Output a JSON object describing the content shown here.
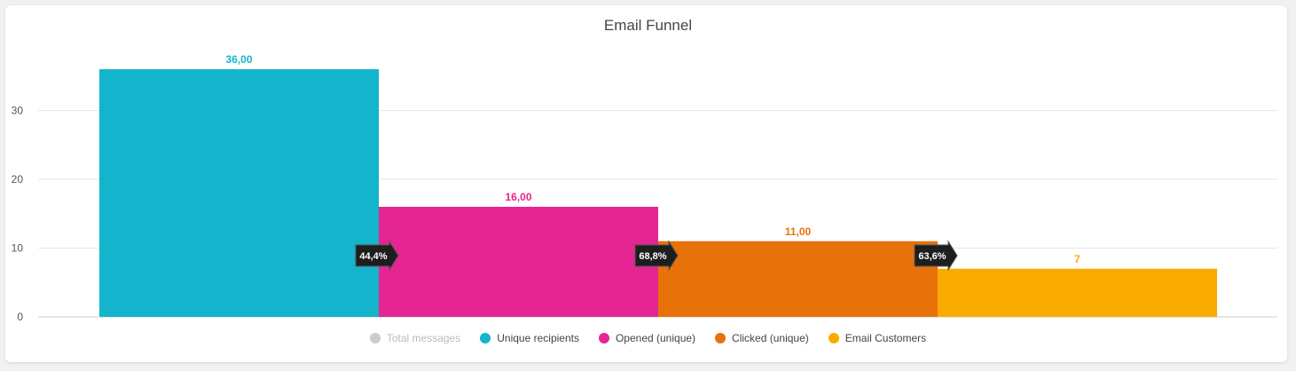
{
  "chart_data": {
    "type": "bar",
    "title": "Email Funnel",
    "categories": [
      "Unique recipients",
      "Opened (unique)",
      "Clicked (unique)",
      "Email Customers"
    ],
    "values": [
      36,
      16,
      11,
      7
    ],
    "value_labels": [
      "36,00",
      "16,00",
      "11,00",
      "7"
    ],
    "colors": [
      "#13b4cc",
      "#e52592",
      "#e8710a",
      "#f9ab00"
    ],
    "conversion_rates": [
      "44,4%",
      "68,8%",
      "63,6%"
    ],
    "ylim": [
      0,
      36
    ],
    "yticks": [
      0,
      10,
      20,
      30
    ],
    "grid": true,
    "legend_position": "bottom",
    "legend": [
      {
        "label": "Total messages",
        "color": "#cccccc",
        "hidden": true
      },
      {
        "label": "Unique recipients",
        "color": "#13b4cc",
        "hidden": false
      },
      {
        "label": "Opened (unique)",
        "color": "#e52592",
        "hidden": false
      },
      {
        "label": "Clicked (unique)",
        "color": "#e8710a",
        "hidden": false
      },
      {
        "label": "Email Customers",
        "color": "#f9ab00",
        "hidden": false
      }
    ]
  }
}
